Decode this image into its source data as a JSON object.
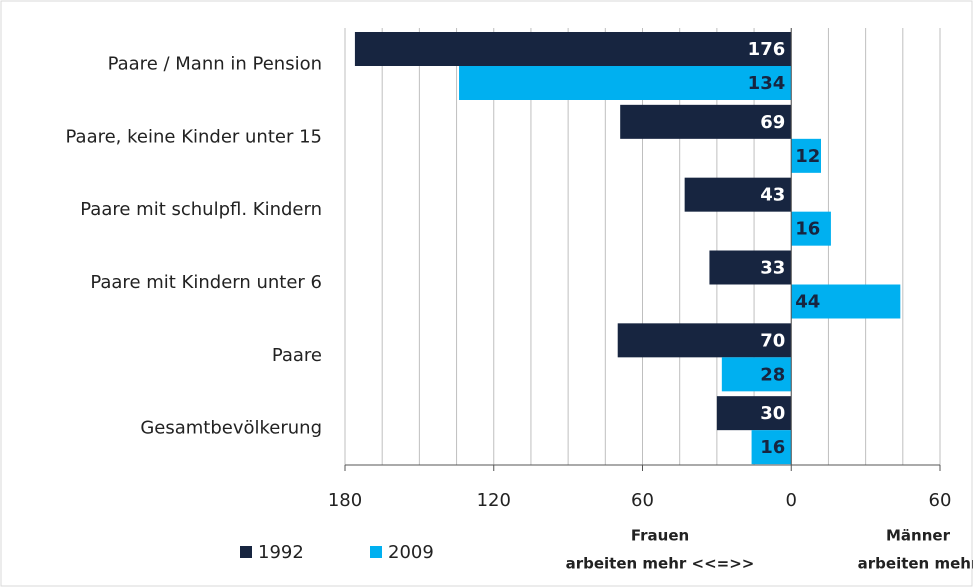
{
  "chart_data": {
    "type": "bar",
    "orientation": "horizontal",
    "categories": [
      "Paare / Mann in Pension",
      "Paare, keine Kinder unter 15",
      "Paare mit schulpfl. Kindern",
      "Paare mit Kindern unter 6",
      "Paare",
      "Gesamtbevölkerung"
    ],
    "series": [
      {
        "name": "1992",
        "color": "#172540",
        "label_color": "#ffffff",
        "values": [
          -176,
          -69,
          -43,
          -33,
          -70,
          -30
        ],
        "value_labels": [
          "176",
          "69",
          "43",
          "33",
          "70",
          "30"
        ]
      },
      {
        "name": "2009",
        "color": "#00b0f0",
        "label_color": "#172540",
        "values": [
          -134,
          12,
          16,
          44,
          -28,
          -16
        ],
        "value_labels": [
          "134",
          "12",
          "16",
          "44",
          "28",
          "16"
        ]
      }
    ],
    "xlim": [
      -180,
      60
    ],
    "xticks": [
      {
        "value": -180,
        "label": "180"
      },
      {
        "value": -120,
        "label": "120"
      },
      {
        "value": -60,
        "label": "60"
      },
      0,
      60
    ],
    "minor_xticks": [
      -165,
      -150,
      -135,
      -105,
      -90,
      -75,
      -45,
      -30,
      -15,
      15,
      30,
      45
    ],
    "grid": true,
    "legend": "bottom-left",
    "annotations": [
      {
        "lines": [
          "Frauen",
          "arbeiten mehr <<=>>"
        ]
      },
      {
        "lines": [
          "Männer",
          "arbeiten mehr"
        ]
      }
    ]
  }
}
